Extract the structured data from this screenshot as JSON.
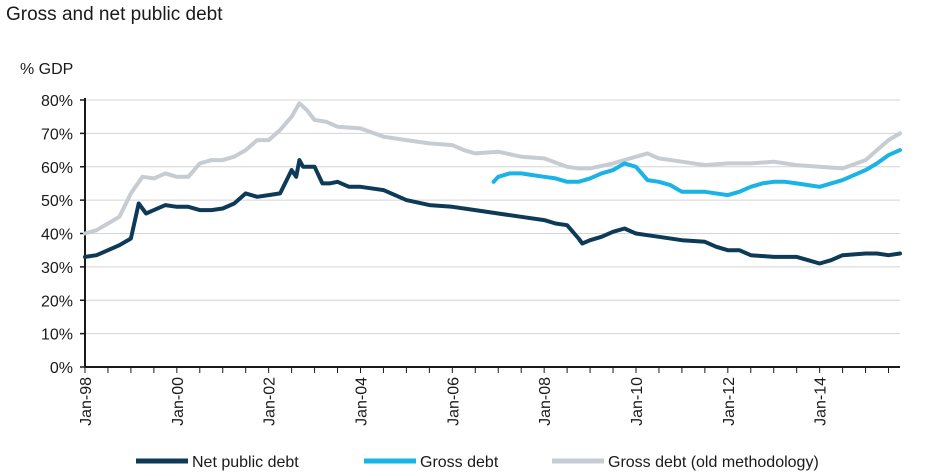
{
  "chart_data": {
    "type": "line",
    "title": "Gross and net public debt",
    "ylabel": "% GDP",
    "xlabel": "",
    "grid": true,
    "ylim": [
      0,
      80
    ],
    "yticks": [
      0,
      10,
      20,
      30,
      40,
      50,
      60,
      70,
      80
    ],
    "ytick_labels": [
      "0%",
      "10%",
      "20%",
      "30%",
      "40%",
      "50%",
      "60%",
      "70%",
      "80%"
    ],
    "xlim": [
      1998.0,
      2015.75
    ],
    "xticks": [
      1998,
      2000,
      2002,
      2004,
      2006,
      2008,
      2010,
      2012,
      2014
    ],
    "xtick_labels": [
      "Jan-98",
      "Jan-00",
      "Jan-02",
      "Jan-04",
      "Jan-06",
      "Jan-08",
      "Jan-10",
      "Jan-12",
      "Jan-14"
    ],
    "legend_position": "bottom",
    "series": [
      {
        "name": "Net public debt",
        "color": "#0d3a56",
        "x": [
          1998.0,
          1998.25,
          1998.5,
          1998.75,
          1999.0,
          1999.17,
          1999.33,
          1999.5,
          1999.75,
          2000.0,
          2000.25,
          2000.5,
          2000.75,
          2001.0,
          2001.25,
          2001.5,
          2001.75,
          2002.0,
          2002.25,
          2002.5,
          2002.6,
          2002.67,
          2002.75,
          2003.0,
          2003.17,
          2003.33,
          2003.5,
          2003.75,
          2004.0,
          2004.5,
          2005.0,
          2005.5,
          2006.0,
          2006.5,
          2007.0,
          2007.5,
          2008.0,
          2008.25,
          2008.5,
          2008.75,
          2008.83,
          2009.0,
          2009.25,
          2009.5,
          2009.75,
          2010.0,
          2010.25,
          2010.5,
          2011.0,
          2011.5,
          2011.75,
          2012.0,
          2012.25,
          2012.5,
          2013.0,
          2013.5,
          2013.75,
          2014.0,
          2014.25,
          2014.5,
          2015.0,
          2015.25,
          2015.5,
          2015.75
        ],
        "values": [
          33,
          33.5,
          35,
          36.5,
          38.5,
          49,
          46,
          47,
          48.5,
          48,
          48,
          47,
          47,
          47.5,
          49,
          52,
          51,
          51.5,
          52,
          59,
          57,
          62,
          60,
          60,
          55,
          55,
          55.5,
          54,
          54,
          53,
          50,
          48.5,
          48,
          47,
          46,
          45,
          44,
          43,
          42.5,
          38.5,
          37,
          38,
          39,
          40.5,
          41.5,
          40,
          39.5,
          39,
          38,
          37.5,
          36,
          35,
          35,
          33.5,
          33,
          33,
          32,
          31,
          32,
          33.5,
          34,
          34,
          33.5,
          34
        ]
      },
      {
        "name": "Gross debt",
        "color": "#1ab3e5",
        "x": [
          2006.9,
          2007.0,
          2007.25,
          2007.5,
          2007.75,
          2008.0,
          2008.25,
          2008.5,
          2008.75,
          2009.0,
          2009.25,
          2009.5,
          2009.75,
          2010.0,
          2010.25,
          2010.5,
          2010.75,
          2011.0,
          2011.5,
          2012.0,
          2012.25,
          2012.5,
          2012.75,
          2013.0,
          2013.25,
          2013.5,
          2013.75,
          2014.0,
          2014.25,
          2014.5,
          2014.75,
          2015.0,
          2015.25,
          2015.5,
          2015.75
        ],
        "values": [
          55.5,
          57,
          58,
          58,
          57.5,
          57,
          56.5,
          55.5,
          55.5,
          56.5,
          58,
          59,
          61,
          60,
          56,
          55.5,
          54.5,
          52.5,
          52.5,
          51.5,
          52.5,
          54,
          55,
          55.5,
          55.5,
          55,
          54.5,
          54,
          55,
          56,
          57.5,
          59,
          61,
          63.5,
          65
        ]
      },
      {
        "name": "Gross debt (old methodology)",
        "color": "#c6ccd2",
        "x": [
          1998.0,
          1998.25,
          1998.5,
          1998.75,
          1999.0,
          1999.25,
          1999.5,
          1999.75,
          2000.0,
          2000.25,
          2000.5,
          2000.75,
          2001.0,
          2001.25,
          2001.5,
          2001.75,
          2002.0,
          2002.25,
          2002.5,
          2002.67,
          2002.83,
          2003.0,
          2003.25,
          2003.5,
          2004.0,
          2004.5,
          2005.0,
          2005.5,
          2006.0,
          2006.25,
          2006.5,
          2007.0,
          2007.5,
          2008.0,
          2008.5,
          2008.75,
          2009.0,
          2009.5,
          2010.0,
          2010.25,
          2010.5,
          2011.0,
          2011.5,
          2012.0,
          2012.5,
          2013.0,
          2013.5,
          2014.0,
          2014.5,
          2015.0,
          2015.25,
          2015.5,
          2015.75
        ],
        "values": [
          40,
          41,
          43,
          45,
          52,
          57,
          56.5,
          58,
          57,
          57,
          61,
          62,
          62,
          63,
          65,
          68,
          68,
          71,
          75,
          79,
          77,
          74,
          73.5,
          72,
          71.5,
          69,
          68,
          67,
          66.5,
          65,
          64,
          64.5,
          63,
          62.5,
          60,
          59.5,
          59.5,
          61,
          63,
          64,
          62.5,
          61.5,
          60.5,
          61,
          61,
          61.5,
          60.5,
          60,
          59.5,
          62,
          65,
          68,
          70
        ]
      }
    ]
  }
}
